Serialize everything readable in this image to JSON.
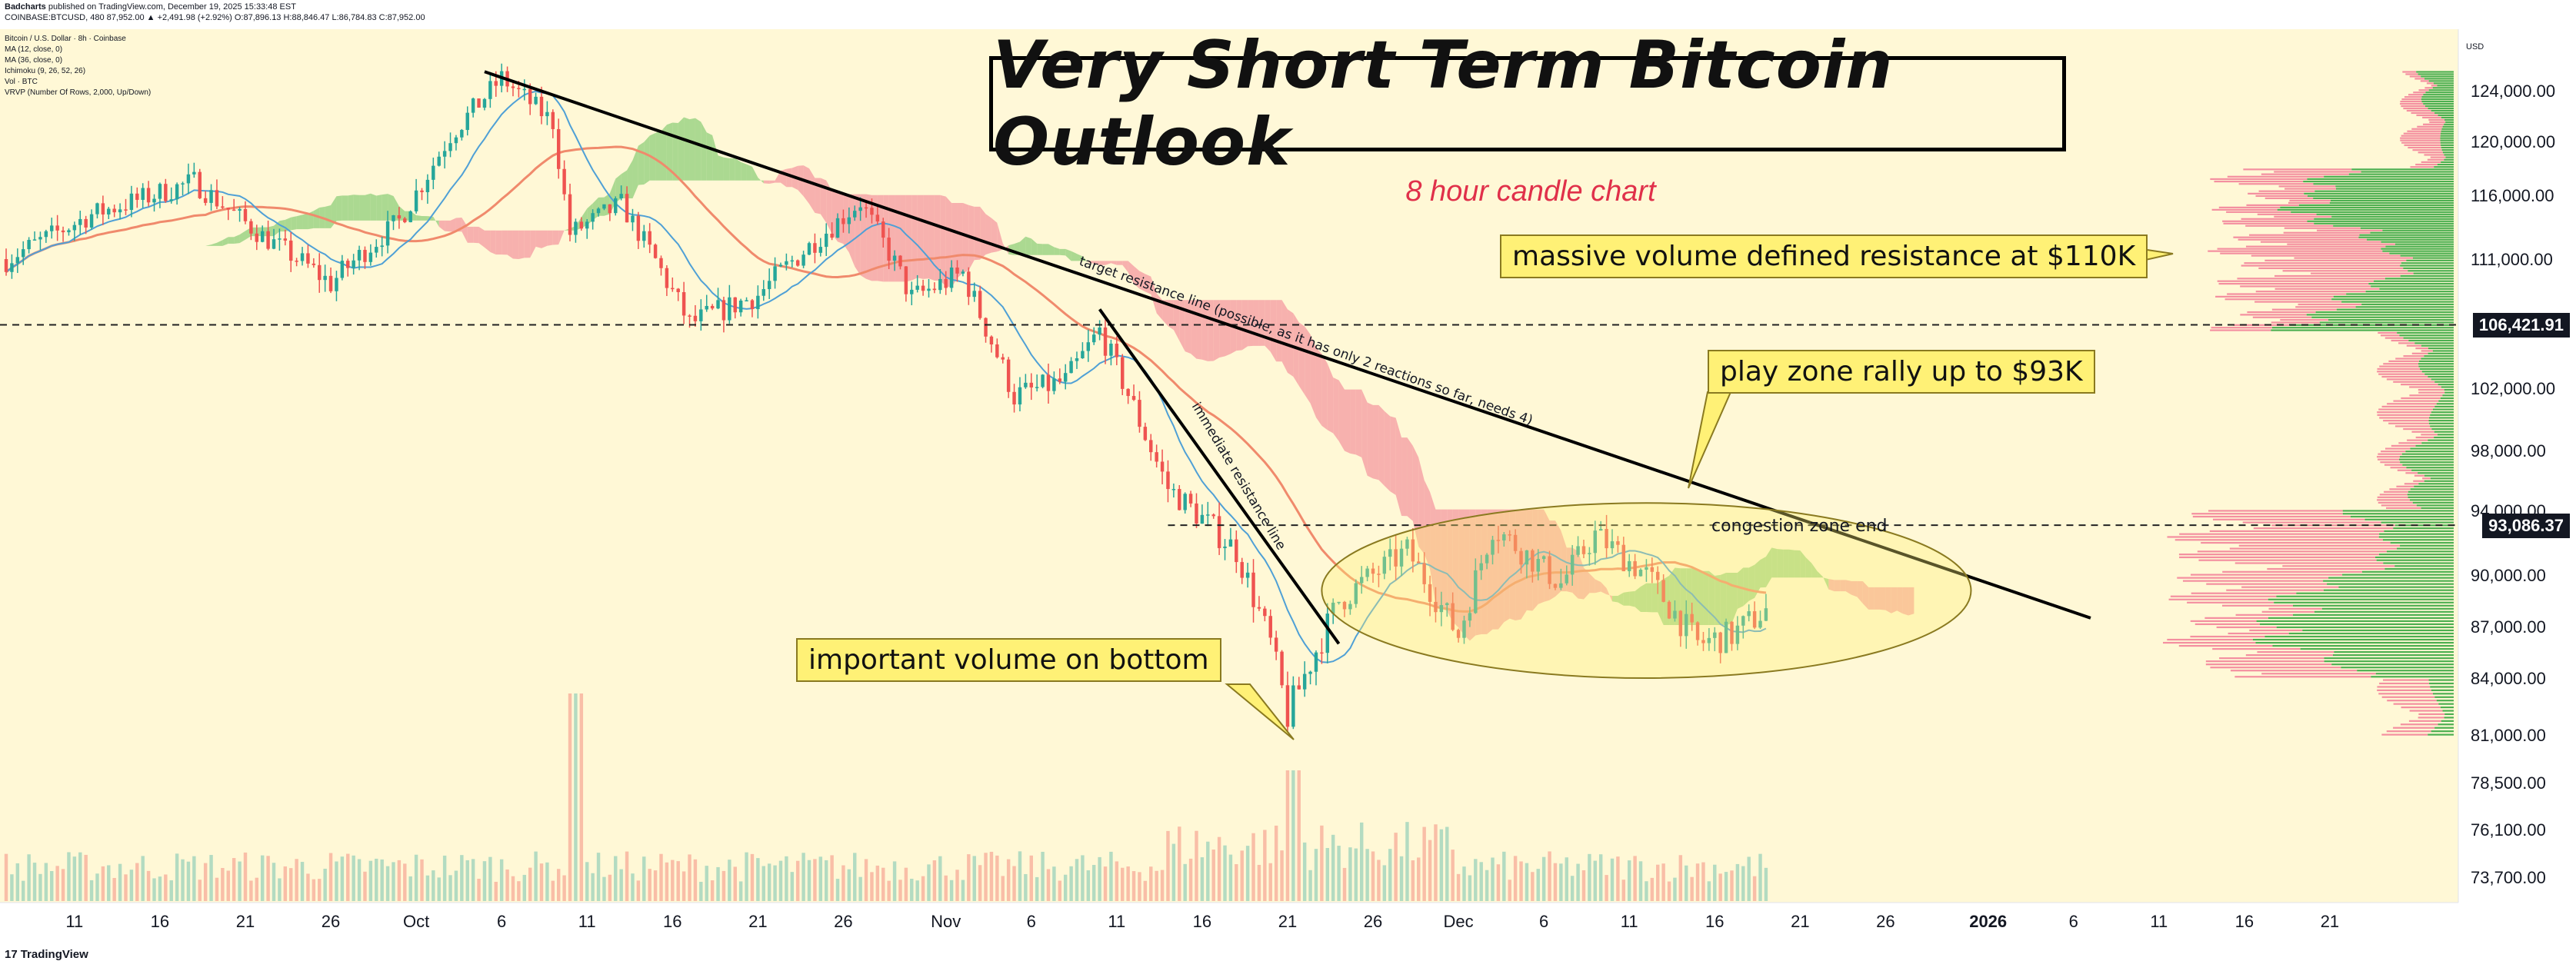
{
  "header": {
    "publisher": "Badcharts",
    "published_text": "published on TradingView.com, December 19, 2025 15:33:48 EST",
    "quote_line": "COINBASE:BTCUSD, 480  87,952.00 ▲ +2,491.98 (+2.92%)  O:87,896.13  H:88,846.47  L:86,784.83  C:87,952.00"
  },
  "legend": [
    "Bitcoin / U.S. Dollar · 8h · Coinbase",
    "MA (12, close, 0)",
    "MA (36, close, 0)",
    "Ichimoku (9, 26, 52, 26)",
    "Vol · BTC",
    "VRVP (Number Of Rows, 2,000, Up/Down)"
  ],
  "currency": "USD",
  "footer": {
    "brand": "TradingView",
    "logo_mark": "17"
  },
  "colors": {
    "background": "#fff8d6",
    "up": "#26a69a",
    "down": "#ef5350",
    "ma_fast": "#4fa0d6",
    "ma_slow": "#f08a6c",
    "cloud_bull": "#8fcf7a",
    "cloud_bear": "#f49aa0",
    "vp_up": "#4caf50",
    "vp_down": "#f48fa0",
    "callout_fill": "#fff176"
  },
  "annotations": {
    "title": "Very Short Term Bitcoin Outlook",
    "subtitle": "8 hour candle chart",
    "resistance_110k": "massive volume defined resistance at $110K",
    "play_zone": "play zone rally up to $93K",
    "important_volume": "important volume on bottom",
    "congestion": "congestion zone end",
    "target_line": "target resistance line (possible, as it has only 2 reactions so far, needs 4)",
    "immediate_line": "immediate resistance line"
  },
  "chart_data": {
    "type": "candlestick",
    "title": "",
    "x_range": [
      "2025-09-07",
      "2026-01-26"
    ],
    "x_tick_labels": [
      "11",
      "16",
      "21",
      "26",
      "Oct",
      "6",
      "11",
      "16",
      "21",
      "26",
      "Nov",
      "6",
      "11",
      "16",
      "21",
      "26",
      "Dec",
      "6",
      "11",
      "16",
      "21",
      "26",
      "2026",
      "6",
      "11",
      "16",
      "21"
    ],
    "y_tick_labels": [
      "124,000.00",
      "120,000.00",
      "116,000.00",
      "111,000.00",
      "102,000.00",
      "98,000.00",
      "94,000.00",
      "90,000.00",
      "87,000.00",
      "84,000.00",
      "81,000.00",
      "78,500.00",
      "76,100.00",
      "73,700.00"
    ],
    "ylim": [
      72500,
      126500
    ],
    "last_price": {
      "value": 106421.91,
      "label": "106,421.91"
    },
    "marked_price": {
      "value": 93086.37,
      "label": "93,086.37"
    },
    "close_path": [
      {
        "date": "2025-09-07",
        "close": 111000
      },
      {
        "date": "2025-09-12",
        "close": 114500
      },
      {
        "date": "2025-09-18",
        "close": 117000
      },
      {
        "date": "2025-09-22",
        "close": 112800
      },
      {
        "date": "2025-09-26",
        "close": 109300
      },
      {
        "date": "2025-09-30",
        "close": 114000
      },
      {
        "date": "2025-10-03",
        "close": 120500
      },
      {
        "date": "2025-10-06",
        "close": 125000
      },
      {
        "date": "2025-10-09",
        "close": 121500
      },
      {
        "date": "2025-10-10",
        "close": 113000
      },
      {
        "date": "2025-10-13",
        "close": 115300
      },
      {
        "date": "2025-10-17",
        "close": 106500
      },
      {
        "date": "2025-10-21",
        "close": 108500
      },
      {
        "date": "2025-10-27",
        "close": 115500
      },
      {
        "date": "2025-10-30",
        "close": 108300
      },
      {
        "date": "2025-11-02",
        "close": 110000
      },
      {
        "date": "2025-11-05",
        "close": 101500
      },
      {
        "date": "2025-11-08",
        "close": 102500
      },
      {
        "date": "2025-11-10",
        "close": 106000
      },
      {
        "date": "2025-11-14",
        "close": 95500
      },
      {
        "date": "2025-11-18",
        "close": 91500
      },
      {
        "date": "2025-11-20",
        "close": 86000
      },
      {
        "date": "2025-11-21",
        "close": 82000
      },
      {
        "date": "2025-11-24",
        "close": 88500
      },
      {
        "date": "2025-11-28",
        "close": 91500
      },
      {
        "date": "2025-12-01",
        "close": 86500
      },
      {
        "date": "2025-12-03",
        "close": 93000
      },
      {
        "date": "2025-12-07",
        "close": 89500
      },
      {
        "date": "2025-12-09",
        "close": 92500
      },
      {
        "date": "2025-12-12",
        "close": 90000
      },
      {
        "date": "2025-12-15",
        "close": 86000
      },
      {
        "date": "2025-12-17",
        "close": 86500
      },
      {
        "date": "2025-12-19",
        "close": 87952
      }
    ],
    "lines": {
      "target_resistance": [
        {
          "date": "2025-10-05",
          "price": 125500
        },
        {
          "date": "2026-01-07",
          "price": 87500
        }
      ],
      "immediate_resistance": [
        {
          "date": "2025-11-10",
          "price": 107500
        },
        {
          "date": "2025-11-24",
          "price": 86000
        }
      ],
      "horizontal_106k": 106421.91,
      "congestion_level": 93086.37
    },
    "congestion_zone": {
      "date_from": "2025-11-23",
      "date_to": "2025-12-31",
      "price_from": 84000,
      "price_to": 94500
    },
    "grid": false
  }
}
